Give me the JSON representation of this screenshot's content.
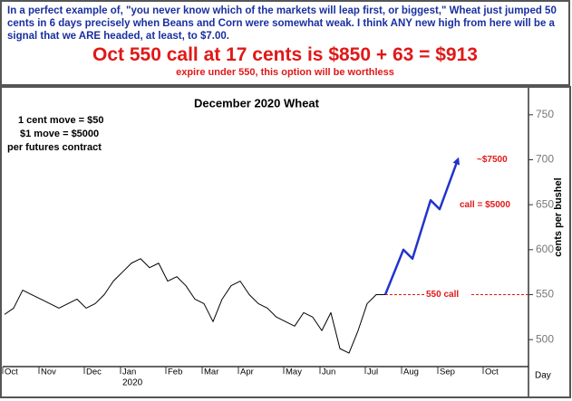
{
  "header": {
    "note": "In a perfect example of, \"you never know which of the markets will leap first, or biggest,\" Wheat just jumped 50 cents in 6 days precisely when Beans and Corn were somewhat weak. I think ANY new high from here will be a signal that we ARE headed, at least, to $7.00.",
    "headline": "Oct 550 call at 17 cents is $850 + 63 = $913",
    "subline": "expire under 550, this option will be worthless"
  },
  "chart_data": {
    "type": "line",
    "title": "December 2020 Wheat",
    "info": [
      "1 cent move = $50",
      "$1 move = $5000",
      "per futures contract"
    ],
    "y_label": "cents per bushel",
    "x_label": "Day",
    "year_label": "2020",
    "categories": [
      "Oct",
      null,
      null,
      null,
      "Nov",
      null,
      null,
      null,
      null,
      "Dec",
      null,
      null,
      null,
      "Jan",
      null,
      null,
      null,
      null,
      "Feb",
      null,
      null,
      null,
      "Mar",
      null,
      null,
      null,
      "Apr",
      null,
      null,
      null,
      null,
      "May",
      null,
      null,
      null,
      "Jun",
      null,
      null,
      null,
      null,
      "Jul",
      null,
      null,
      null,
      "Aug",
      null,
      null,
      null,
      "Sep",
      null,
      null,
      null,
      null,
      "Oct",
      null,
      null,
      null
    ],
    "series": [
      {
        "color": "#000000",
        "values": [
          528,
          535,
          555,
          550,
          545,
          540,
          535,
          540,
          545,
          535,
          540,
          550,
          565,
          575,
          585,
          590,
          580,
          585,
          565,
          570,
          560,
          545,
          540,
          520,
          545,
          560,
          565,
          550,
          540,
          535,
          525,
          520,
          515,
          530,
          525,
          510,
          530,
          490,
          485,
          510,
          540,
          550,
          550,
          null,
          null,
          null,
          null,
          null,
          null,
          null,
          null,
          null,
          null,
          null,
          null,
          null,
          null
        ]
      },
      {
        "color": "#2233cc",
        "x": [
          42,
          44,
          45,
          47,
          48,
          50
        ],
        "values": [
          550,
          600,
          590,
          655,
          645,
          700
        ]
      }
    ],
    "annotations": [
      {
        "text": "~$7500",
        "value": 700
      },
      {
        "text": "call = $5000",
        "value": 650
      },
      {
        "text": "550 call",
        "value": 550
      }
    ],
    "annotation_color": "#e01818",
    "ylim": [
      470,
      780
    ],
    "yticks": [
      500,
      550,
      600,
      650,
      700,
      750
    ]
  }
}
